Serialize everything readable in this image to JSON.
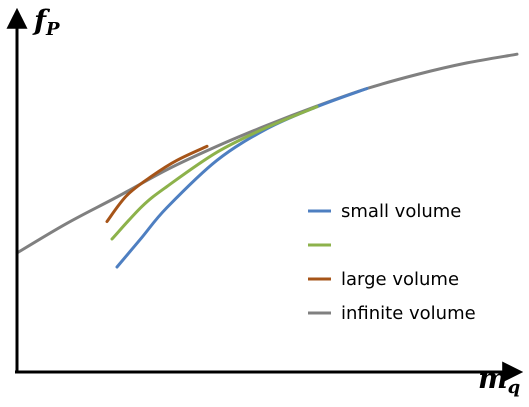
{
  "chart_data": {
    "type": "line",
    "xlabel": "m",
    "xlabel_sub": "q",
    "ylabel": "f",
    "ylabel_sub": "P",
    "ticks": "none",
    "grid": false,
    "legend_placement": "right",
    "xlim": [
      0,
      10
    ],
    "ylim": [
      0,
      10
    ],
    "series": [
      {
        "name": "small volume",
        "color": "#4e7fc1",
        "x": [
          2.0,
          2.5,
          3.0,
          4.0,
          5.0,
          6.0,
          7.0
        ],
        "y": [
          3.0,
          3.85,
          4.7,
          6.05,
          6.95,
          7.58,
          8.1
        ]
      },
      {
        "name": "",
        "color": "#8db24b",
        "x": [
          1.9,
          2.5,
          3.0,
          4.0,
          5.0,
          6.0
        ],
        "y": [
          3.8,
          4.73,
          5.3,
          6.28,
          6.99,
          7.58
        ]
      },
      {
        "name": "large volume",
        "color": "#a65418",
        "x": [
          1.8,
          2.2,
          2.7,
          3.2,
          3.8
        ],
        "y": [
          4.3,
          5.05,
          5.6,
          6.05,
          6.45
        ]
      },
      {
        "name": "infinite volume",
        "color": "#808080",
        "x": [
          0.0,
          1.0,
          2.0,
          3.0,
          4.0,
          5.0,
          6.0,
          7.0,
          8.0,
          9.0,
          10.0
        ],
        "y": [
          3.4,
          4.25,
          5.0,
          5.78,
          6.45,
          7.05,
          7.6,
          8.1,
          8.5,
          8.83,
          9.08
        ]
      }
    ]
  }
}
